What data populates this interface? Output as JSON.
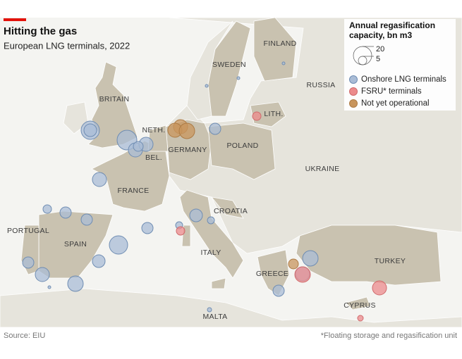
{
  "header": {
    "title": "Hitting the gas",
    "subtitle": "European LNG terminals, 2022"
  },
  "legend": {
    "title": [
      "Annual regasification",
      "capacity, bn m3"
    ],
    "sizes": [
      20,
      5
    ],
    "items": [
      "Onshore LNG terminals",
      "FSRU* terminals",
      "Not yet operational"
    ]
  },
  "labels": [
    "FINLAND",
    "SWEDEN",
    "RUSSIA",
    "BRITAIN",
    "LITH.",
    "NETH.",
    "GERMANY",
    "POLAND",
    "BEL.",
    "UKRAINE",
    "FRANCE",
    "CROATIA",
    "PORTUGAL",
    "SPAIN",
    "ITALY",
    "TURKEY",
    "GREECE",
    "CYPRUS",
    "MALTA"
  ],
  "footer": {
    "source": "Source: EIU",
    "note": "*Floating storage and regasification unit"
  }
}
